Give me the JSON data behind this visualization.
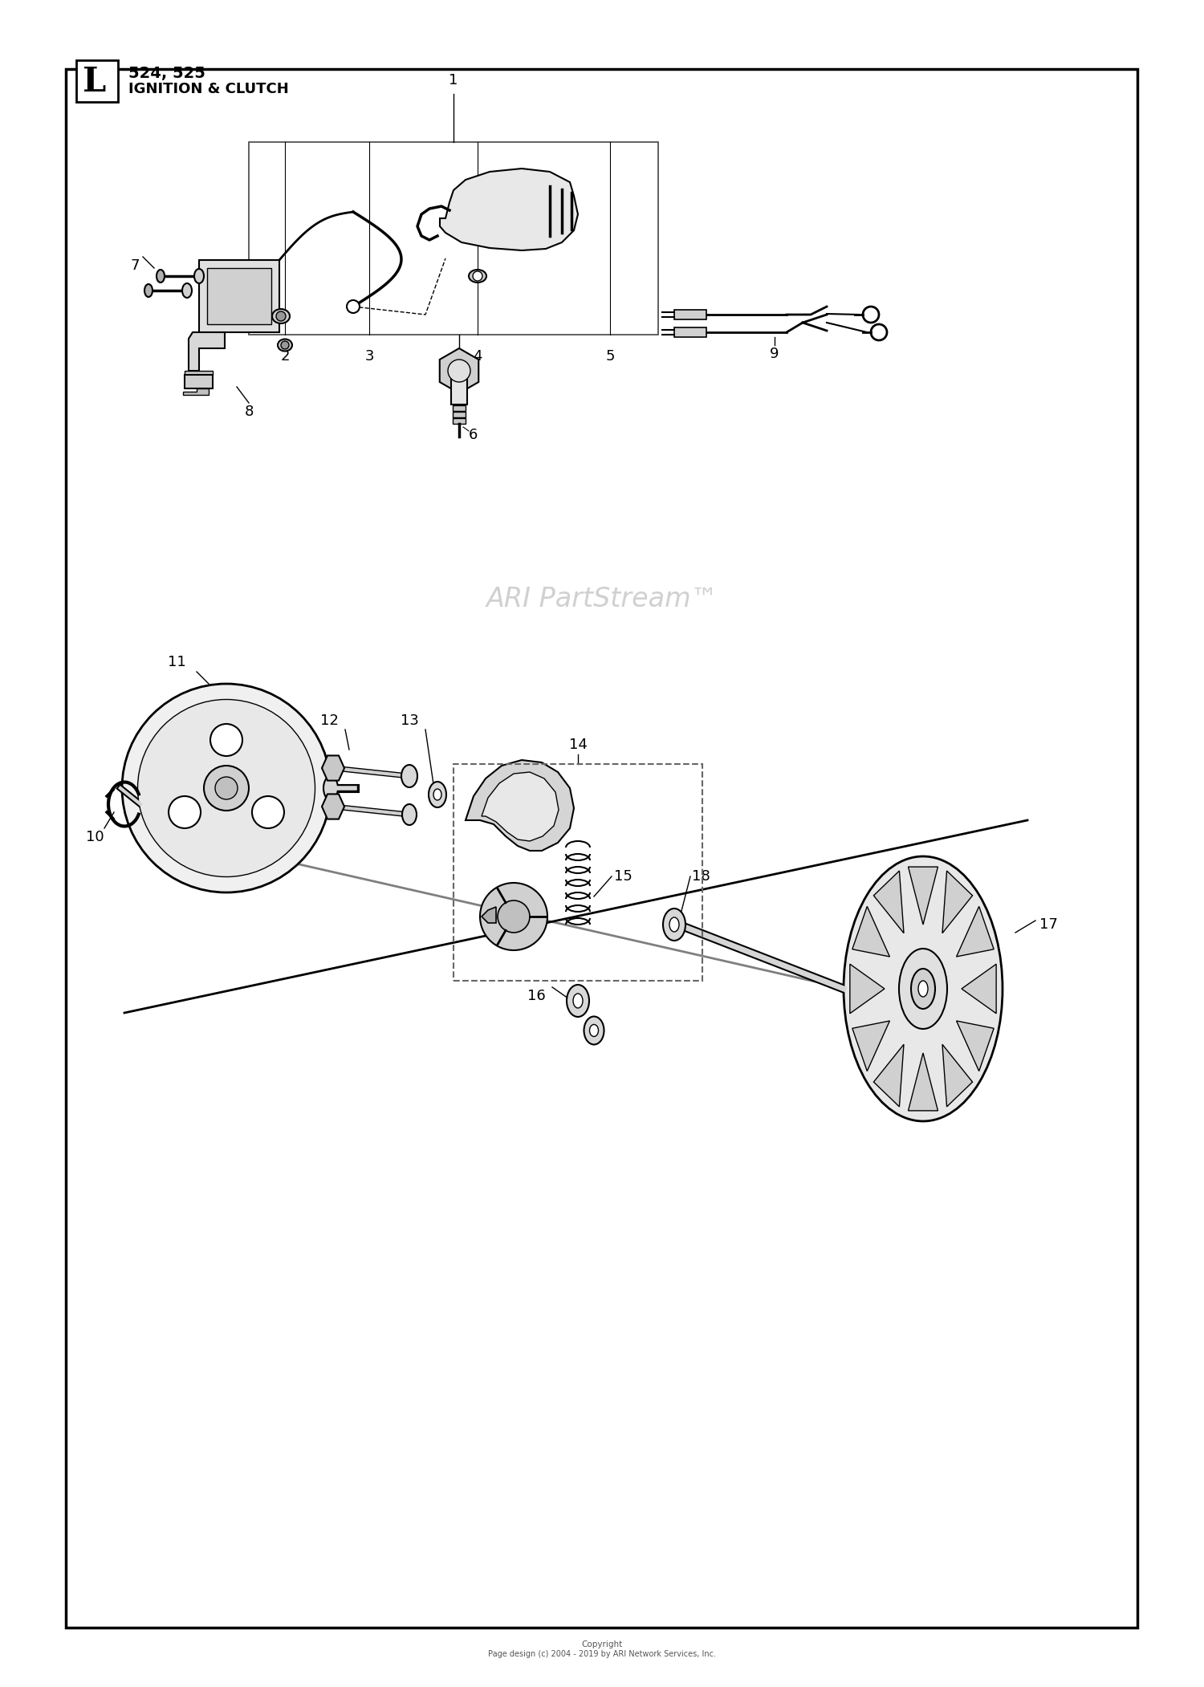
{
  "fig_width": 15.0,
  "fig_height": 21.02,
  "bg_color": "#ffffff",
  "title_letter": "L",
  "title_line1": "524, 525",
  "title_line2": "IGNITION & CLUTCH",
  "watermark": "ARI PartStream™",
  "copyright_line1": "Copyright",
  "copyright_line2": "Page design (c) 2004 - 2019 by ARI Network Services, Inc."
}
